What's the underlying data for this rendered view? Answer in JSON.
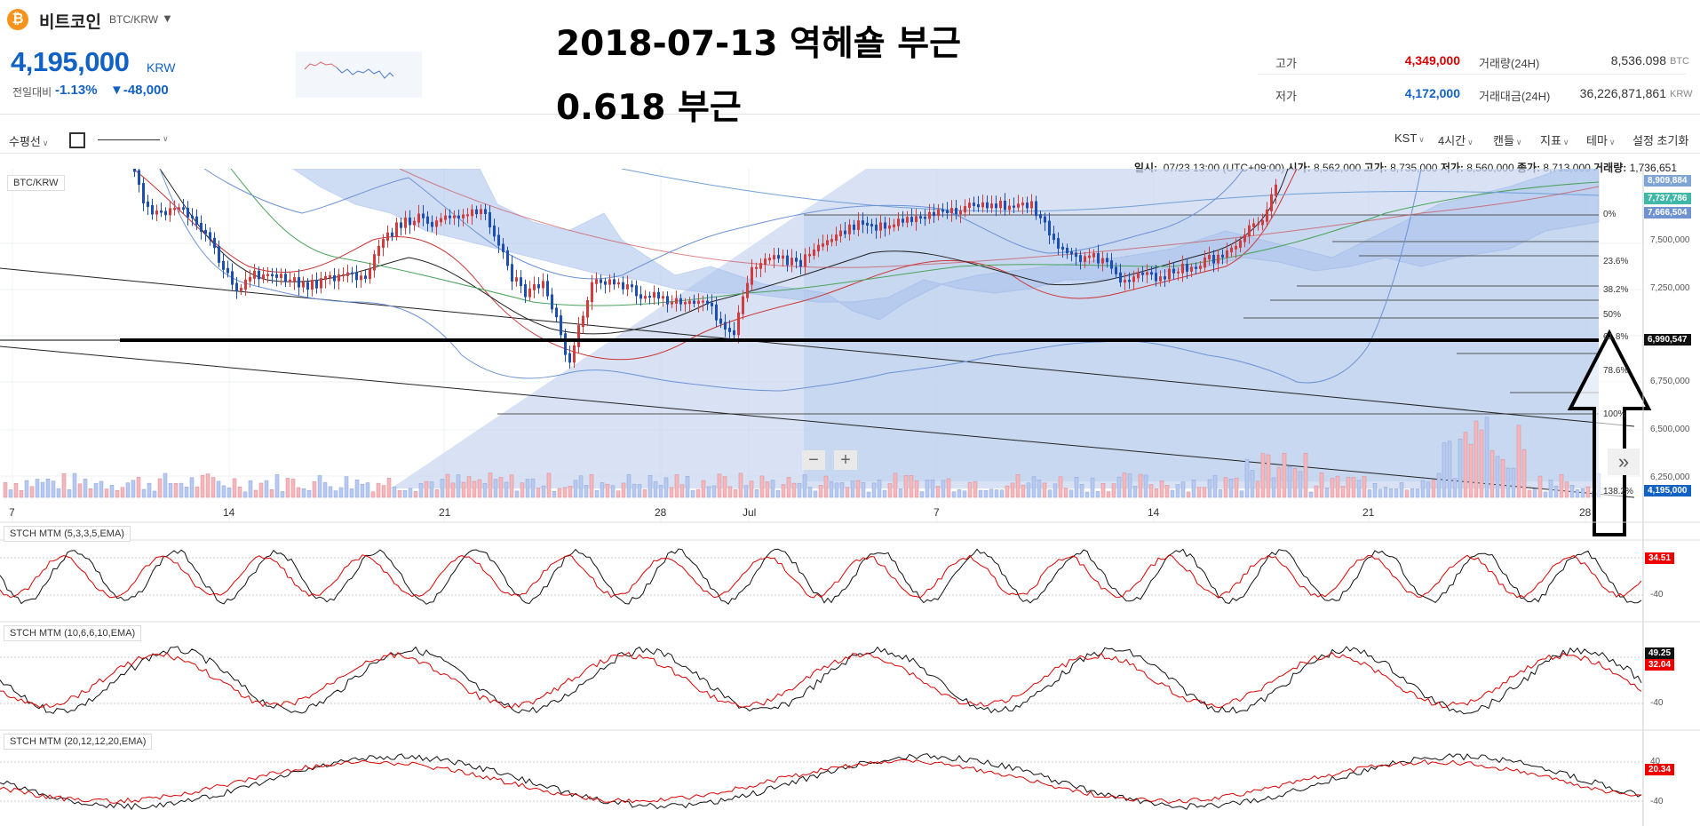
{
  "header": {
    "coin_icon": "₿",
    "coin_name": "비트코인",
    "pair": "BTC/KRW",
    "price": "4,195,000",
    "price_unit": "KRW",
    "change_label": "전일대비",
    "change_pct": "-1.13%",
    "change_amount": "▼-48,000",
    "high_label": "고가",
    "high_value": "4,349,000",
    "low_label": "저가",
    "low_value": "4,172,000",
    "volume_label": "거래량(24H)",
    "volume_value": "8,536.098",
    "volume_unit": "BTC",
    "amount_label": "거래대금(24H)",
    "amount_value": "36,226,871,861",
    "amount_unit": "KRW",
    "colors": {
      "down": "#1261c4",
      "up": "#d60000",
      "brand": "#f7931a"
    }
  },
  "annotations": {
    "line1": "2018-07-13 역헤숄 부근",
    "line2": "0.618 부근"
  },
  "toolbar": {
    "horizontal_line": "수평선",
    "timezone": "KST",
    "interval": "4시간",
    "chart_type": "캔들",
    "indicator": "지표",
    "theme": "테마",
    "reset": "설정 초기화"
  },
  "ohlc": {
    "date_label": "일시:",
    "date": "07/23 13:00 (UTC+09:00)",
    "open_label": "시가:",
    "open": "8,562,000",
    "high_label": "고가:",
    "high": "8,735,000",
    "low_label": "저가:",
    "low": "8,560,000",
    "close_label": "종가:",
    "close": "8,713,000",
    "volume_label": "거래량:",
    "volume": "1,736,651"
  },
  "main_chart": {
    "label": "BTC/KRW",
    "y_ticks": [
      "7,500,000",
      "7,250,000",
      "6,750,000",
      "6,500,000",
      "6,250,000"
    ],
    "price_tags": [
      {
        "value": "8,909,884",
        "color": "#7fa4d6"
      },
      {
        "value": "7,737,786",
        "color": "#3fb8a7"
      },
      {
        "value": "7,666,504",
        "color": "#6e93d0"
      },
      {
        "value": "6,990,547",
        "color": "#111111"
      },
      {
        "value": "4,195,000",
        "color": "#1261c4"
      }
    ],
    "fib_levels": [
      "0%",
      "23.6%",
      "38.2%",
      "50%",
      "61.8%",
      "78.6%",
      "100%",
      "138.2%"
    ],
    "date_ticks": [
      "7",
      "14",
      "21",
      "28",
      "Jul",
      "7",
      "14",
      "21",
      "28"
    ]
  },
  "indicators": [
    {
      "label": "STCH MTM (5,3,3,5,EMA)",
      "tag": "34.51",
      "level": "-40"
    },
    {
      "label": "STCH MTM (10,6,6,10,EMA)",
      "tag": "49.25",
      "tag2": "32.04",
      "level": "-40"
    },
    {
      "label": "STCH MTM (20,12,12,20,EMA)",
      "tag": "20.34",
      "level": "-40",
      "level_top": "40"
    }
  ],
  "chart_data": {
    "type": "candlestick",
    "series_name": "BTC/KRW",
    "x_ticks": [
      "7",
      "14",
      "21",
      "28",
      "Jul",
      "7",
      "14",
      "21",
      "28"
    ],
    "y_ticks": [
      7500000,
      7250000,
      6750000,
      6500000,
      6250000
    ],
    "horizontal_level": 6990547,
    "fib_levels": [
      "0%",
      "23.6%",
      "38.2%",
      "50%",
      "61.8%",
      "78.6%",
      "100%",
      "138.2%"
    ]
  }
}
